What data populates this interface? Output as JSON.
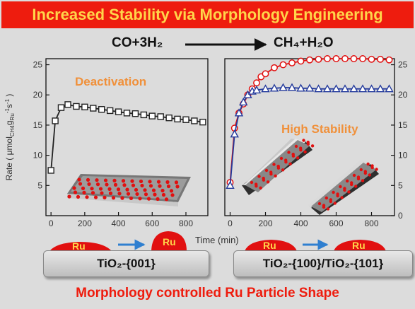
{
  "banner": {
    "title": "Increased Stability via Morphology Engineering"
  },
  "reaction": {
    "lhs": "CO+3H₂",
    "rhs": "CH₄+H₂O"
  },
  "labels": {
    "deactivation": "Deactivation",
    "high_stability": "High Stability",
    "support_left": "TiO₂-{001}",
    "support_right": "TiO₂-{100}/TiO₂-{101}",
    "ru": "Ru",
    "footer": "Morphology controlled Ru Particle Shape"
  },
  "colors": {
    "banner_bg": "#ee1c0e",
    "banner_text": "#ffd54a",
    "accent_orange": "#f0903a",
    "ru_red": "#e11010",
    "arrow_blue": "#2f7fd0"
  },
  "chart_data": [
    {
      "type": "line",
      "panel": "left",
      "ylabel": "Rate ( μmol CH4 g Ru ⁻¹ s⁻¹ )",
      "ylim": [
        0,
        26
      ],
      "yticks": [
        5,
        10,
        15,
        20,
        25
      ],
      "xlim": [
        -30,
        930
      ],
      "xticks": [
        0,
        200,
        400,
        600,
        800
      ],
      "grid": false,
      "series": [
        {
          "marker": "square",
          "color": "#222222",
          "x": [
            0,
            25,
            60,
            100,
            150,
            200,
            250,
            300,
            350,
            400,
            450,
            500,
            550,
            600,
            650,
            700,
            750,
            800,
            850,
            900
          ],
          "y": [
            7.5,
            15.7,
            17.9,
            18.4,
            18.1,
            18.0,
            17.8,
            17.6,
            17.4,
            17.2,
            17.0,
            16.9,
            16.7,
            16.5,
            16.4,
            16.2,
            16.0,
            15.9,
            15.7,
            15.5
          ]
        }
      ]
    },
    {
      "type": "line",
      "panel": "right",
      "xlabel": "Time (min)",
      "ylim": [
        0,
        26
      ],
      "yticks": [
        0,
        5,
        10,
        15,
        20,
        25
      ],
      "xlim": [
        -30,
        930
      ],
      "xticks": [
        0,
        200,
        400,
        600,
        800
      ],
      "grid": false,
      "series": [
        {
          "marker": "circle",
          "color": "#e11010",
          "x": [
            0,
            25,
            50,
            75,
            100,
            125,
            150,
            175,
            200,
            250,
            300,
            350,
            400,
            450,
            500,
            550,
            600,
            650,
            700,
            750,
            800,
            850,
            900
          ],
          "y": [
            5.5,
            14.5,
            17.0,
            18.5,
            20.0,
            21.0,
            22.0,
            23.0,
            23.5,
            24.5,
            25.0,
            25.3,
            25.6,
            25.8,
            25.9,
            26.0,
            26.0,
            26.0,
            26.0,
            26.0,
            25.9,
            25.9,
            25.8
          ]
        },
        {
          "marker": "triangle",
          "color": "#233a9c",
          "x": [
            0,
            25,
            50,
            75,
            100,
            125,
            150,
            200,
            250,
            300,
            350,
            400,
            450,
            500,
            550,
            600,
            650,
            700,
            750,
            800,
            850,
            900
          ],
          "y": [
            5.0,
            13.5,
            17.0,
            18.8,
            20.0,
            20.6,
            20.8,
            21.0,
            21.1,
            21.2,
            21.2,
            21.1,
            21.1,
            21.0,
            21.0,
            21.0,
            21.0,
            21.0,
            21.0,
            21.0,
            21.0,
            21.0
          ]
        }
      ]
    }
  ]
}
